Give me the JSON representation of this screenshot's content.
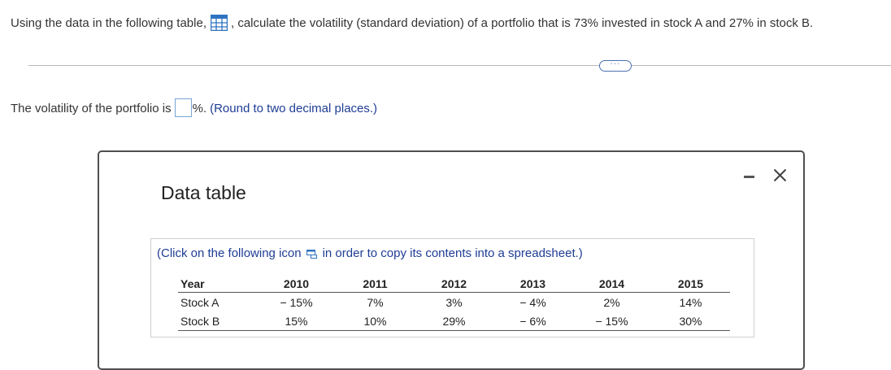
{
  "question": {
    "prefix": "Using the data in the following table,",
    "suffix": ", calculate the volatility (standard deviation) of a portfolio that is 73% invested in stock A and 27% in stock B."
  },
  "more_label": "···",
  "answer": {
    "prefix": "The volatility of the portfolio is",
    "input_value": "",
    "suffix": "%.",
    "note": "(Round to two decimal places.)"
  },
  "dialog": {
    "title": "Data table",
    "note_before": "(Click on the following icon",
    "note_after": "in order to copy its contents into a spreadsheet.)",
    "table": {
      "header_label": "Year",
      "years": [
        "2010",
        "2011",
        "2012",
        "2013",
        "2014",
        "2015"
      ],
      "rows": [
        {
          "label": "Stock A",
          "values": [
            "− 15%",
            "7%",
            "3%",
            "− 4%",
            "2%",
            "14%"
          ]
        },
        {
          "label": "Stock B",
          "values": [
            "15%",
            "10%",
            "29%",
            "− 6%",
            "− 15%",
            "30%"
          ]
        }
      ]
    }
  },
  "colors": {
    "link_blue": "#1f3d94",
    "icon_blue": "#2f74c0"
  }
}
